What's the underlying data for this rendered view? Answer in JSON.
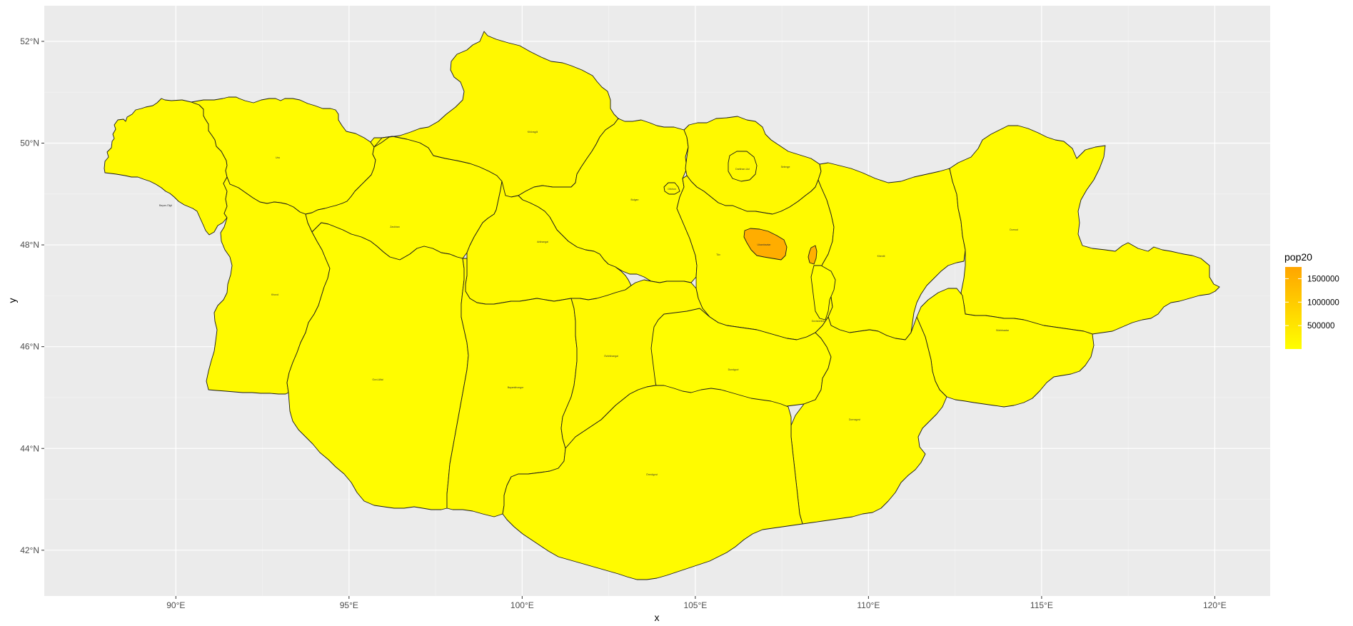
{
  "chart_data": {
    "type": "choropleth-map",
    "xlabel": "x",
    "ylabel": "y",
    "x_ticks": [
      "90°E",
      "95°E",
      "100°E",
      "105°E",
      "110°E",
      "115°E",
      "120°E"
    ],
    "x_tick_values": [
      90,
      95,
      100,
      105,
      110,
      115,
      120
    ],
    "y_ticks": [
      "42°N",
      "44°N",
      "46°N",
      "48°N",
      "50°N",
      "52°N"
    ],
    "y_tick_values": [
      42,
      44,
      46,
      48,
      50,
      52
    ],
    "xlim": [
      86.2,
      121.6
    ],
    "ylim": [
      41.1,
      52.7
    ],
    "grid": true,
    "legend": {
      "title": "pop20",
      "position": "right",
      "labels": [
        "1500000",
        "1000000",
        "500000"
      ],
      "label_values": [
        1500000,
        1000000,
        500000
      ],
      "range": [
        0,
        1750000
      ],
      "colors": [
        "#ffff00",
        "#ffa500"
      ]
    },
    "regions": [
      {
        "name": "Bayan-Ölgii",
        "pop20": 100000
      },
      {
        "name": "Uvs",
        "pop20": 82000
      },
      {
        "name": "Khovd",
        "pop20": 89000
      },
      {
        "name": "Zavkhan",
        "pop20": 73000
      },
      {
        "name": "Khövsgöl",
        "pop20": 135000
      },
      {
        "name": "Bulgan",
        "pop20": 61000
      },
      {
        "name": "Orkhon",
        "pop20": 106000
      },
      {
        "name": "Darkhan-Uul",
        "pop20": 107000
      },
      {
        "name": "Selenge",
        "pop20": 108000
      },
      {
        "name": "Arkhangai",
        "pop20": 94000
      },
      {
        "name": "Töv",
        "pop20": 97000
      },
      {
        "name": "Ulaanbaatar",
        "pop20": 1600000
      },
      {
        "name": "Nalaikh",
        "pop20": 1550000
      },
      {
        "name": "Khentii",
        "pop20": 77000
      },
      {
        "name": "Dornod",
        "pop20": 80000
      },
      {
        "name": "Govi-Altai",
        "pop20": 57000
      },
      {
        "name": "Bayankhongor",
        "pop20": 88000
      },
      {
        "name": "Övörkhangai",
        "pop20": 116000
      },
      {
        "name": "Dundgovi",
        "pop20": 46000
      },
      {
        "name": "Govisümber",
        "pop20": 18000
      },
      {
        "name": "Sükhbaatar",
        "pop20": 62000
      },
      {
        "name": "Dornogovi",
        "pop20": 70000
      },
      {
        "name": "Ömnögovi",
        "pop20": 70000
      }
    ]
  }
}
